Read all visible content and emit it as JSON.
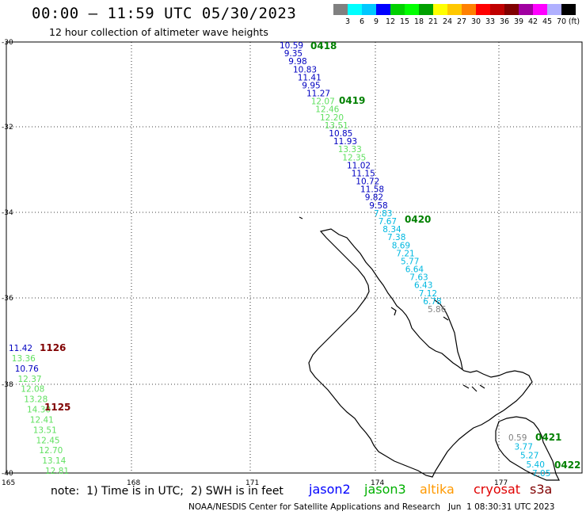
{
  "title": "00:00 – 11:59 UTC 05/30/2023",
  "subtitle": "12 hour collection of altimeter wave heights",
  "legend": {
    "unit": "(ft)",
    "colors": [
      "#808080",
      "#00ffff",
      "#00c8ff",
      "#0000ff",
      "#00d000",
      "#00ff00",
      "#00a000",
      "#ffff00",
      "#ffc800",
      "#ff8000",
      "#ff0000",
      "#c00000",
      "#800000",
      "#a000a0",
      "#ff00ff",
      "#b0b0ff",
      "#000000"
    ],
    "labels": [
      "3",
      "6",
      "9",
      "12",
      "15",
      "18",
      "21",
      "24",
      "27",
      "30",
      "33",
      "36",
      "39",
      "42",
      "45",
      "70"
    ]
  },
  "map": {
    "lat_labels": [
      "-30",
      "-32",
      "-34",
      "-36",
      "-38",
      "-40"
    ],
    "lon_labels": [
      "165",
      "168",
      "171",
      "174",
      "177"
    ],
    "time_labels": [
      {
        "text": "0418",
        "color": "#008000"
      },
      {
        "text": "0419",
        "color": "#008000"
      },
      {
        "text": "0420",
        "color": "#008000"
      },
      {
        "text": "1126",
        "color": "#800000"
      },
      {
        "text": "1125",
        "color": "#800000"
      },
      {
        "text": "0421",
        "color": "#008000"
      },
      {
        "text": "0422",
        "color": "#008000"
      }
    ],
    "track_main": {
      "values": [
        "10.59",
        "9.35",
        "9.98",
        "10.83",
        "11.41",
        "9.95",
        "11.27",
        "12.07",
        "12.46",
        "12.20",
        "13.51",
        "10.85",
        "11.93",
        "13.33",
        "12.35",
        "11.02",
        "11.15",
        "10.72",
        "11.58",
        "9.82",
        "9.58",
        "7.83",
        "7.67",
        "8.34",
        "7.38",
        "8.69",
        "7.21",
        "5.77",
        "6.64",
        "7.63",
        "6.43",
        "7.12",
        "6.78",
        "5.86"
      ],
      "colors": [
        "#0000c0",
        "#0000c0",
        "#0000c0",
        "#0000c0",
        "#0000c0",
        "#0000c0",
        "#0000c0",
        "#60e060",
        "#60e060",
        "#60e060",
        "#60e060",
        "#0000c0",
        "#0000c0",
        "#60e060",
        "#60e060",
        "#0000c0",
        "#0000c0",
        "#0000c0",
        "#0000c0",
        "#0000c0",
        "#0000c0",
        "#00b8e0",
        "#00b8e0",
        "#00b8e0",
        "#00b8e0",
        "#00b8e0",
        "#00b8e0",
        "#00b8e0",
        "#00b8e0",
        "#00b8e0",
        "#00b8e0",
        "#00b8e0",
        "#00b8e0",
        "#808080"
      ]
    },
    "track_west": {
      "values": [
        "11.42",
        "13.36",
        "10.76",
        "12.37",
        "12.08",
        "13.28",
        "14.30",
        "12.41",
        "13.51",
        "12.45",
        "12.70",
        "13.14",
        "12.81"
      ],
      "colors": [
        "#0000c0",
        "#60e060",
        "#0000c0",
        "#60e060",
        "#60e060",
        "#60e060",
        "#60e060",
        "#60e060",
        "#60e060",
        "#60e060",
        "#60e060",
        "#60e060",
        "#60e060"
      ]
    },
    "track_east": {
      "values": [
        "0.59",
        "3.77",
        "5.27",
        "5.40",
        "7.05"
      ],
      "colors": [
        "#808080",
        "#00b8e0",
        "#00b8e0",
        "#00b8e0",
        "#00b8e0"
      ]
    }
  },
  "footer": {
    "note": "note:  1) Time is in UTC;  2) SWH is in feet",
    "satellites": [
      {
        "name": "jason2",
        "color": "#0000ff"
      },
      {
        "name": "jason3",
        "color": "#00b000"
      },
      {
        "name": "altika",
        "color": "#ff9900"
      },
      {
        "name": "cryosat",
        "color": "#e00000"
      },
      {
        "name": "s3a",
        "color": "#800000"
      }
    ],
    "credit": "NOAA/NESDIS Center for Satellite Applications and Research   Jun  1 08:30:31 UTC 2023"
  }
}
